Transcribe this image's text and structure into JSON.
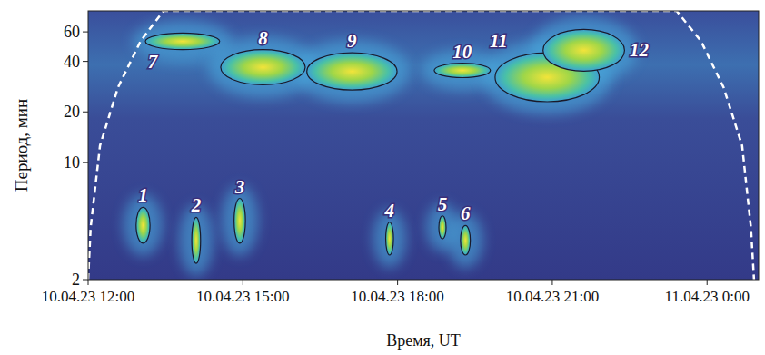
{
  "chart_data": {
    "type": "wavelet",
    "x_label": "Время, UT",
    "y_label": "Период, мин",
    "log": "y",
    "xlim": [
      12,
      25
    ],
    "xticks": [
      {
        "value": 12,
        "label": "10.04.23 12:00"
      },
      {
        "value": 15,
        "label": "10.04.23 15:00"
      },
      {
        "value": 18,
        "label": "10.04.23 18:00"
      },
      {
        "value": 21,
        "label": "10.04.23 21:00"
      },
      {
        "value": 24,
        "label": "11.04.23 0:00"
      }
    ],
    "ylim": [
      2,
      80
    ],
    "yticks": [
      2,
      10,
      20,
      40,
      60
    ],
    "regions": [
      {
        "label": "1",
        "t": [
          12.93,
          13.2
        ],
        "period": [
          3.3,
          5.4
        ]
      },
      {
        "label": "2",
        "t": [
          14.01,
          14.18
        ],
        "period": [
          2.5,
          4.7
        ]
      },
      {
        "label": "3",
        "t": [
          14.83,
          15.05
        ],
        "period": [
          3.3,
          6.1
        ]
      },
      {
        "label": "4",
        "t": [
          17.77,
          17.92
        ],
        "period": [
          2.8,
          4.4
        ]
      },
      {
        "label": "5",
        "t": [
          18.8,
          18.94
        ],
        "period": [
          3.5,
          4.8
        ]
      },
      {
        "label": "6",
        "t": [
          19.22,
          19.41
        ],
        "period": [
          2.8,
          4.2
        ]
      },
      {
        "label": "7",
        "t": [
          13.11,
          14.55
        ],
        "period": [
          47,
          59
        ]
      },
      {
        "label": "8",
        "t": [
          14.57,
          16.21
        ],
        "period": [
          29,
          47
        ]
      },
      {
        "label": "9",
        "t": [
          16.24,
          17.99
        ],
        "period": [
          27,
          45
        ]
      },
      {
        "label": "10",
        "t": [
          18.71,
          19.8
        ],
        "period": [
          32,
          39
        ]
      },
      {
        "label": "11",
        "t": [
          19.89,
          21.91
        ],
        "period": [
          23,
          45
        ]
      },
      {
        "label": "12",
        "t": [
          20.82,
          22.4
        ],
        "period": [
          35,
          62
        ]
      }
    ],
    "coi": {
      "x": [
        12.0,
        12.05,
        12.23,
        12.58,
        13.02,
        13.46,
        23.41,
        23.88,
        24.32,
        24.68,
        24.85,
        24.91
      ],
      "y": [
        2,
        4.1,
        12.6,
        28,
        53,
        80,
        80,
        53,
        28,
        12.6,
        4.1,
        2
      ]
    },
    "color": "#ffffff",
    "line_style": "dashed"
  }
}
